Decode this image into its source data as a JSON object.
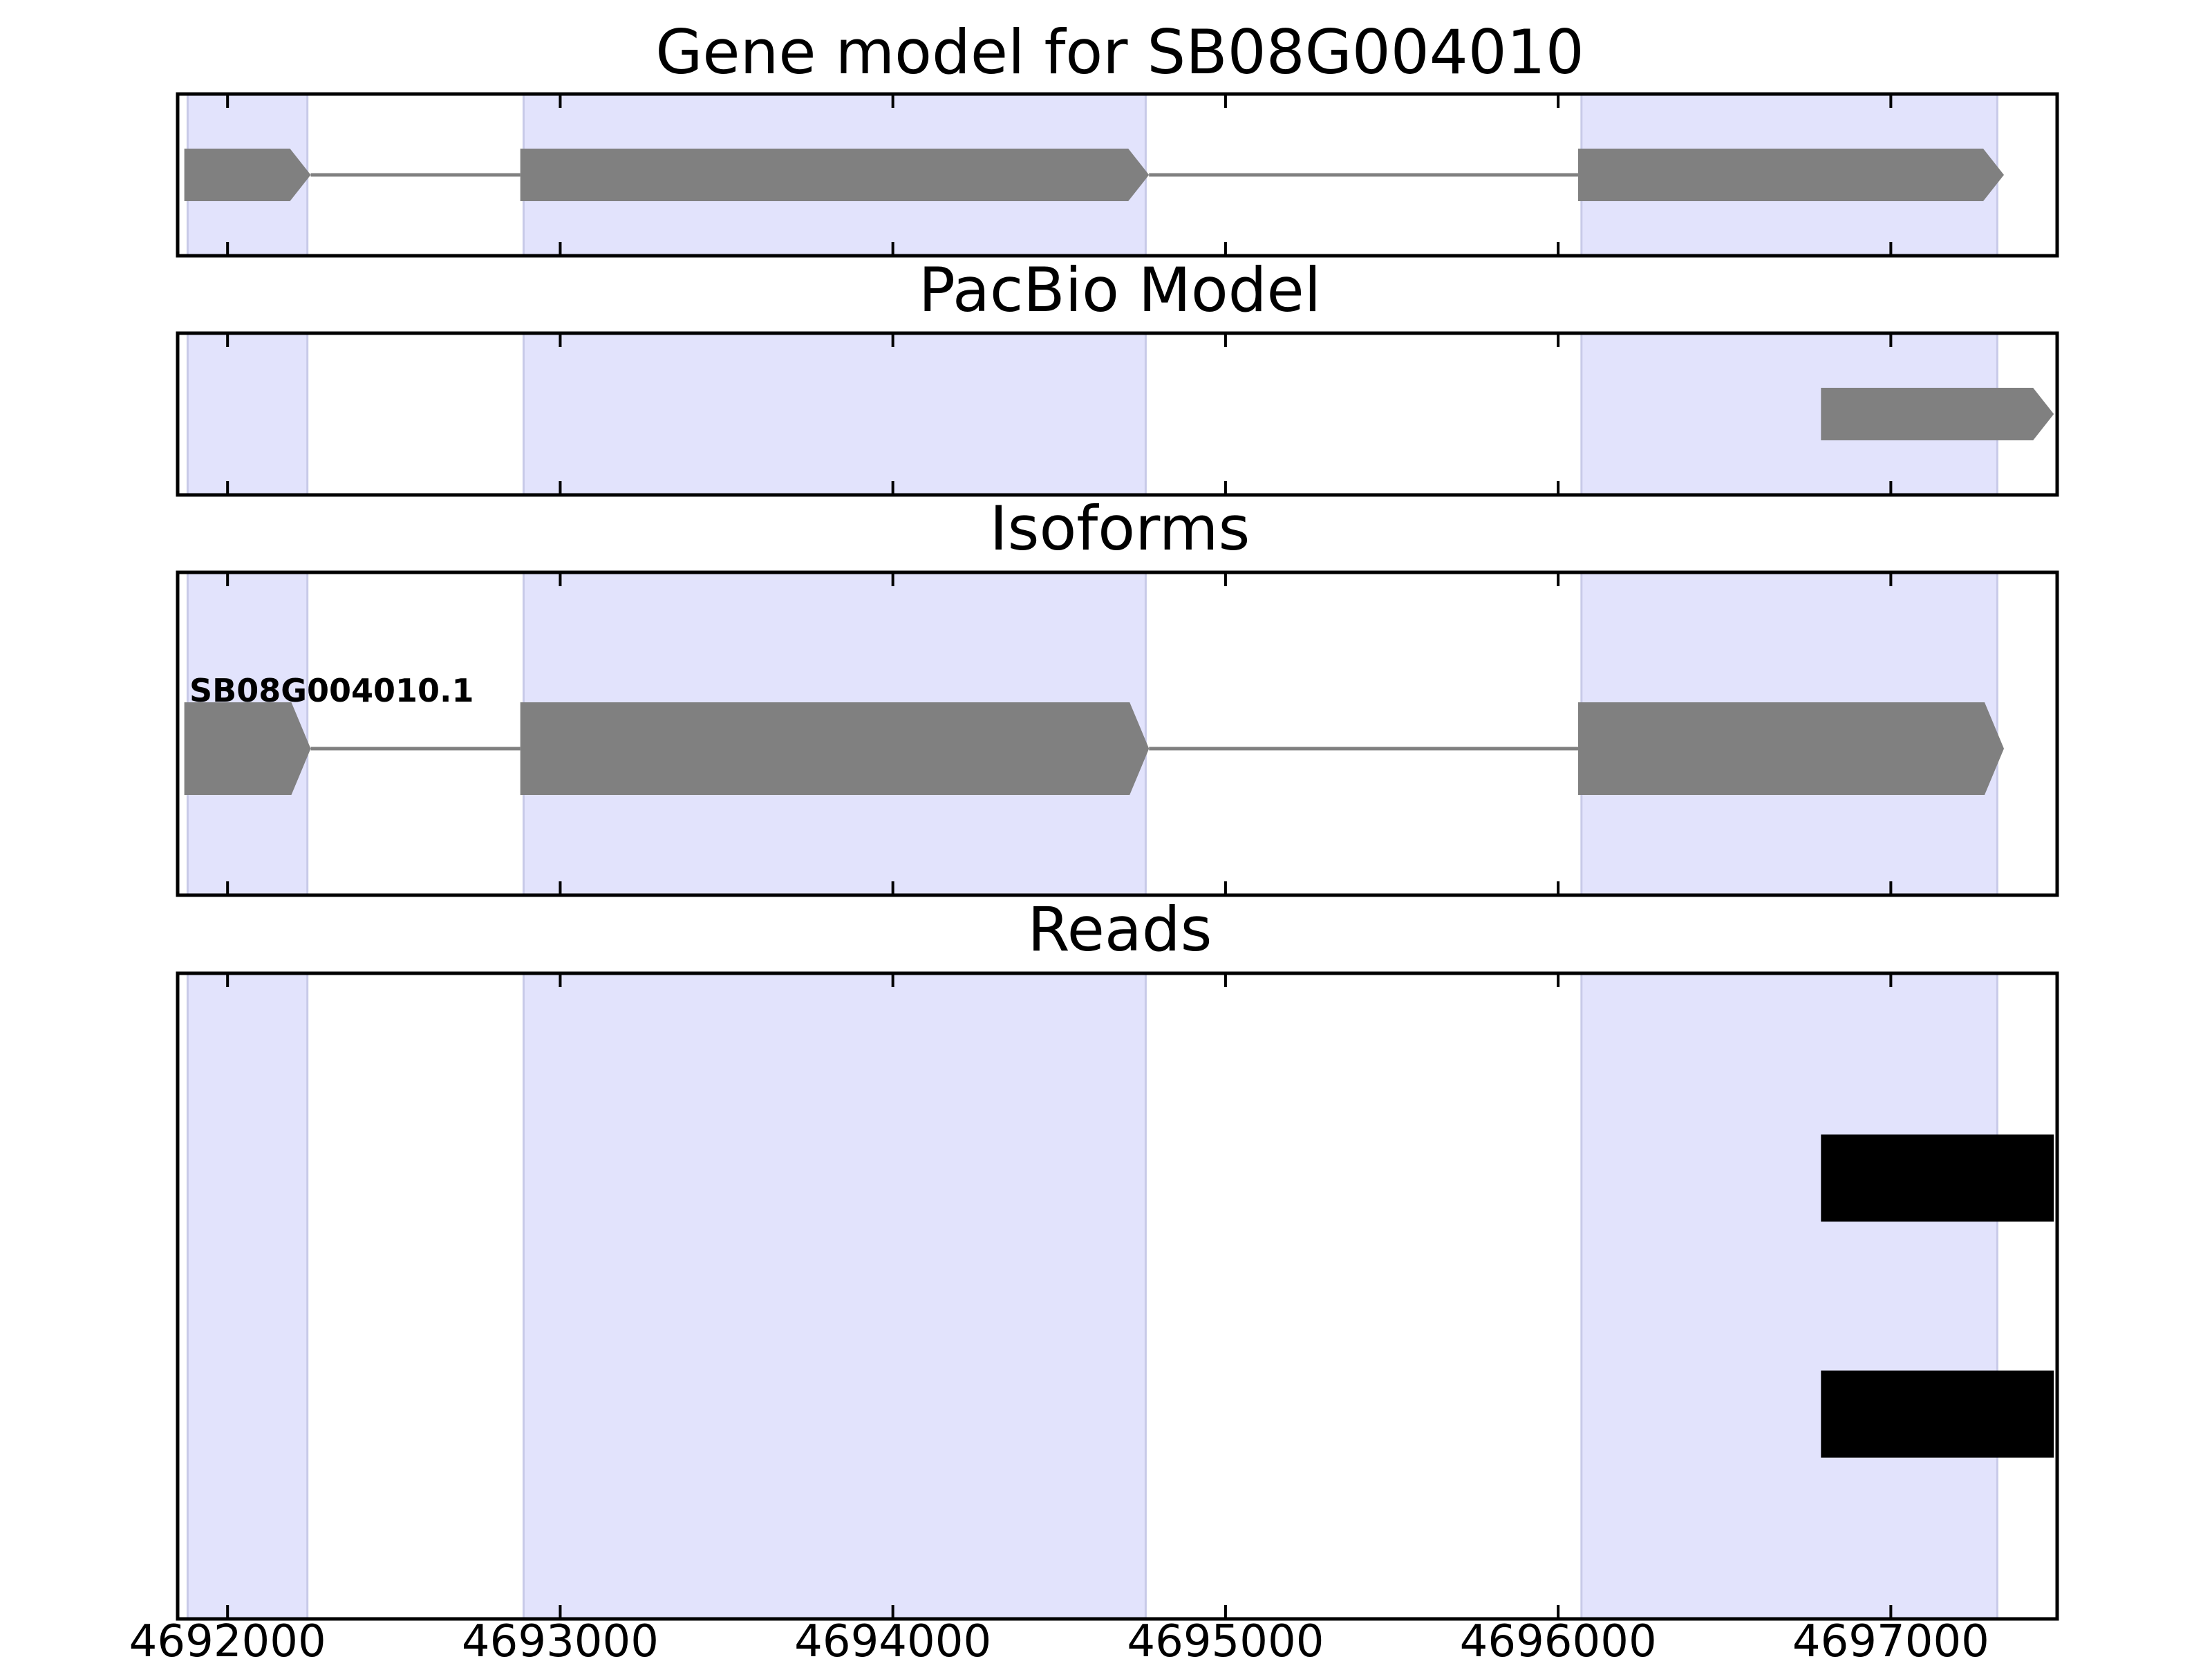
{
  "chart_data": {
    "type": "gene-track",
    "xlim": [
      4691850,
      4697500
    ],
    "xticks": [
      4692000,
      4693000,
      4694000,
      4695000,
      4696000,
      4697000
    ],
    "xtick_labels": [
      "4692000",
      "4693000",
      "4694000",
      "4695000",
      "4696000",
      "4697000"
    ],
    "colors": {
      "highlight": "#e2e3fc",
      "highlight_edge": "#c8cae8",
      "feature": "#808080",
      "read": "#000000",
      "intron": "#808080"
    },
    "highlight_regions": [
      [
        4691880,
        4692240
      ],
      [
        4692890,
        4694760
      ],
      [
        4696070,
        4697320
      ]
    ],
    "panels": [
      {
        "title": "Gene model for SB08G004010",
        "strand": "+",
        "exons": [
          [
            4691870,
            4692250
          ],
          [
            4692880,
            4694770
          ],
          [
            4696060,
            4697340
          ]
        ]
      },
      {
        "title": "PacBio Model",
        "strand": "+",
        "exons": [
          [
            4696790,
            4697490
          ]
        ]
      },
      {
        "title": "Isoforms",
        "isoform_label": "SB08G004010.1",
        "strand": "+",
        "exons": [
          [
            4691870,
            4692250
          ],
          [
            4692880,
            4694770
          ],
          [
            4696060,
            4697340
          ]
        ]
      },
      {
        "title": "Reads",
        "reads": [
          [
            4696790,
            4697490
          ],
          [
            4696790,
            4697490
          ]
        ]
      }
    ]
  }
}
